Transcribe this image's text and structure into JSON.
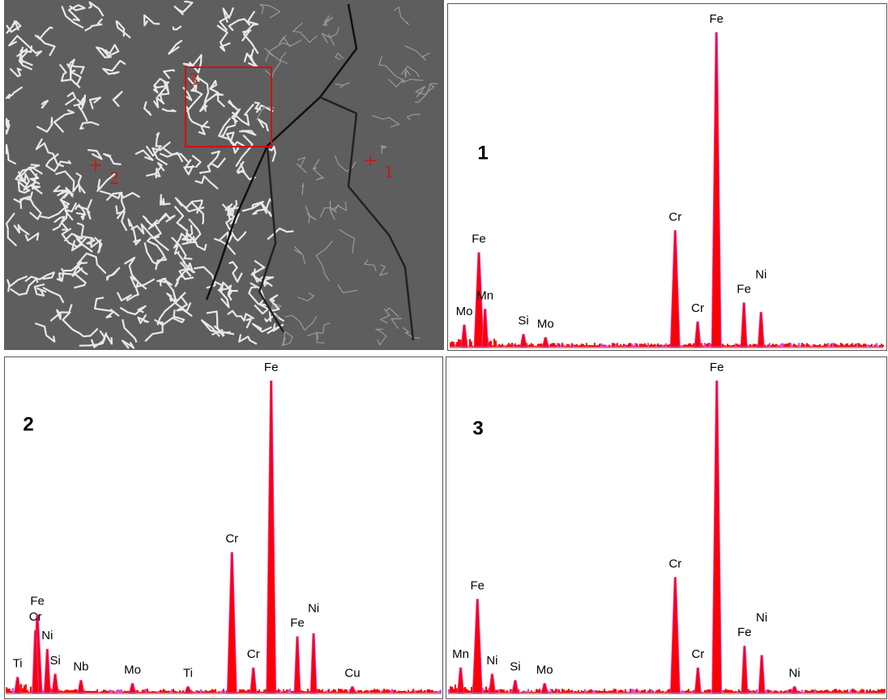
{
  "micrograph": {
    "labels": [
      "1",
      "2",
      "3"
    ]
  },
  "chart_data": [
    {
      "type": "spectrum",
      "title": "1",
      "color": "#ff0000",
      "xlim": [
        0,
        10.4
      ],
      "ylim": [
        0,
        100
      ],
      "peaks": [
        {
          "label": "Mo",
          "x": 0.35,
          "y": 7
        },
        {
          "label": "Fe",
          "x": 0.7,
          "y": 30
        },
        {
          "label": "Mn",
          "x": 0.85,
          "y": 12
        },
        {
          "label": "Si",
          "x": 1.77,
          "y": 4
        },
        {
          "label": "Mo",
          "x": 2.3,
          "y": 3
        },
        {
          "label": "Cr",
          "x": 5.41,
          "y": 37
        },
        {
          "label": "Cr",
          "x": 5.95,
          "y": 8
        },
        {
          "label": "Fe",
          "x": 6.4,
          "y": 100
        },
        {
          "label": "Fe",
          "x": 7.06,
          "y": 14
        },
        {
          "label": "Ni",
          "x": 7.47,
          "y": 11
        }
      ]
    },
    {
      "type": "spectrum",
      "title": "2",
      "color": "#ff0000",
      "xlim": [
        -0.3,
        10.7
      ],
      "ylim": [
        0,
        100
      ],
      "peaks": [
        {
          "label": "Ti",
          "x": 0.0,
          "y": 5
        },
        {
          "label": "Fe",
          "x": 0.5,
          "y": 25
        },
        {
          "label": "Cr",
          "x": 0.45,
          "y": 20
        },
        {
          "label": "Ni",
          "x": 0.75,
          "y": 14
        },
        {
          "label": "Si",
          "x": 0.95,
          "y": 6
        },
        {
          "label": "Nb",
          "x": 1.6,
          "y": 4
        },
        {
          "label": "Mo",
          "x": 2.9,
          "y": 3
        },
        {
          "label": "Ti",
          "x": 4.3,
          "y": 2
        },
        {
          "label": "Cr",
          "x": 5.41,
          "y": 45
        },
        {
          "label": "Cr",
          "x": 5.95,
          "y": 8
        },
        {
          "label": "Fe",
          "x": 6.4,
          "y": 100
        },
        {
          "label": "Fe",
          "x": 7.06,
          "y": 18
        },
        {
          "label": "Ni",
          "x": 7.47,
          "y": 19
        },
        {
          "label": "Cu",
          "x": 8.45,
          "y": 2
        }
      ]
    },
    {
      "type": "spectrum",
      "title": "3",
      "color": "#ff0000",
      "xlim": [
        0,
        10.4
      ],
      "ylim": [
        0,
        100
      ],
      "peaks": [
        {
          "label": "Mn",
          "x": 0.3,
          "y": 8
        },
        {
          "label": "Fe",
          "x": 0.7,
          "y": 30
        },
        {
          "label": "Ni",
          "x": 1.05,
          "y": 6
        },
        {
          "label": "Si",
          "x": 1.6,
          "y": 4
        },
        {
          "label": "Mo",
          "x": 2.3,
          "y": 3
        },
        {
          "label": "Cr",
          "x": 5.41,
          "y": 37
        },
        {
          "label": "Cr",
          "x": 5.95,
          "y": 8
        },
        {
          "label": "Fe",
          "x": 6.4,
          "y": 100
        },
        {
          "label": "Fe",
          "x": 7.06,
          "y": 15
        },
        {
          "label": "Ni",
          "x": 7.47,
          "y": 12
        },
        {
          "label": "Ni",
          "x": 8.25,
          "y": 2
        }
      ]
    }
  ]
}
